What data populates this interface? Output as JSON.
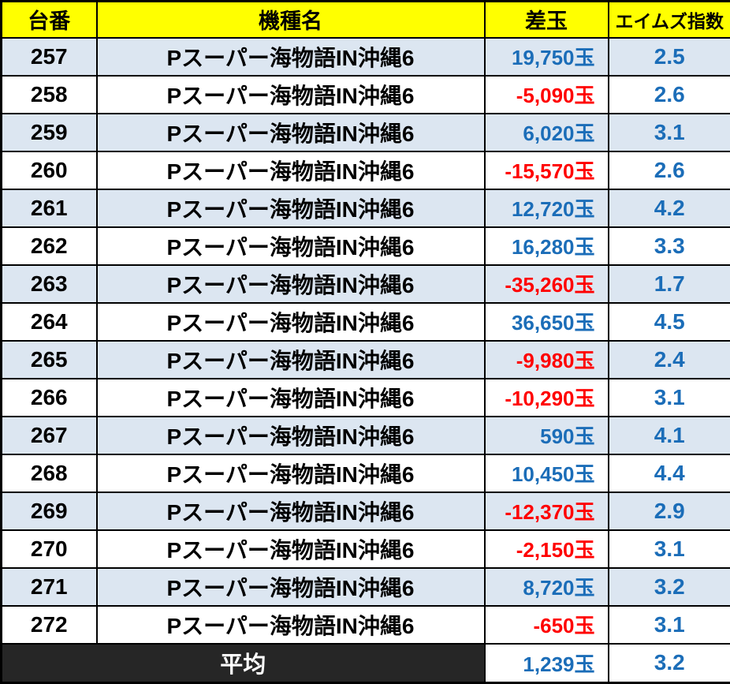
{
  "colors": {
    "header_background": "#FFFF00",
    "stripe_blue": "#DCE6F1",
    "positive_blue": "#1B6DB8",
    "negative_red": "#FF0000",
    "footer_dark": "#262626",
    "border_black": "#000000"
  },
  "table": {
    "headers": [
      "台番",
      "機種名",
      "差玉",
      "エイムズ指数"
    ],
    "rows": [
      {
        "no": "257",
        "model": "Pスーパー海物語IN沖縄6",
        "diff": "19,750玉",
        "index": "2.5"
      },
      {
        "no": "258",
        "model": "Pスーパー海物語IN沖縄6",
        "diff": "-5,090玉",
        "index": "2.6"
      },
      {
        "no": "259",
        "model": "Pスーパー海物語IN沖縄6",
        "diff": "6,020玉",
        "index": "3.1"
      },
      {
        "no": "260",
        "model": "Pスーパー海物語IN沖縄6",
        "diff": "-15,570玉",
        "index": "2.6"
      },
      {
        "no": "261",
        "model": "Pスーパー海物語IN沖縄6",
        "diff": "12,720玉",
        "index": "4.2"
      },
      {
        "no": "262",
        "model": "Pスーパー海物語IN沖縄6",
        "diff": "16,280玉",
        "index": "3.3"
      },
      {
        "no": "263",
        "model": "Pスーパー海物語IN沖縄6",
        "diff": "-35,260玉",
        "index": "1.7"
      },
      {
        "no": "264",
        "model": "Pスーパー海物語IN沖縄6",
        "diff": "36,650玉",
        "index": "4.5"
      },
      {
        "no": "265",
        "model": "Pスーパー海物語IN沖縄6",
        "diff": "-9,980玉",
        "index": "2.4"
      },
      {
        "no": "266",
        "model": "Pスーパー海物語IN沖縄6",
        "diff": "-10,290玉",
        "index": "3.1"
      },
      {
        "no": "267",
        "model": "Pスーパー海物語IN沖縄6",
        "diff": "590玉",
        "index": "4.1"
      },
      {
        "no": "268",
        "model": "Pスーパー海物語IN沖縄6",
        "diff": "10,450玉",
        "index": "4.4"
      },
      {
        "no": "269",
        "model": "Pスーパー海物語IN沖縄6",
        "diff": "-12,370玉",
        "index": "2.9"
      },
      {
        "no": "270",
        "model": "Pスーパー海物語IN沖縄6",
        "diff": "-2,150玉",
        "index": "3.1"
      },
      {
        "no": "271",
        "model": "Pスーパー海物語IN沖縄6",
        "diff": "8,720玉",
        "index": "3.2"
      },
      {
        "no": "272",
        "model": "Pスーパー海物語IN沖縄6",
        "diff": "-650玉",
        "index": "3.1"
      }
    ],
    "footer": {
      "label": "平均",
      "diff": "1,239玉",
      "index": "3.2"
    }
  },
  "chart_data": {
    "type": "table",
    "columns": [
      "台番",
      "機種名",
      "差玉",
      "エイムズ指数"
    ],
    "rows": [
      [
        257,
        "Pスーパー海物語IN沖縄6",
        19750,
        2.5
      ],
      [
        258,
        "Pスーパー海物語IN沖縄6",
        -5090,
        2.6
      ],
      [
        259,
        "Pスーパー海物語IN沖縄6",
        6020,
        3.1
      ],
      [
        260,
        "Pスーパー海物語IN沖縄6",
        -15570,
        2.6
      ],
      [
        261,
        "Pスーパー海物語IN沖縄6",
        12720,
        4.2
      ],
      [
        262,
        "Pスーパー海物語IN沖縄6",
        16280,
        3.3
      ],
      [
        263,
        "Pスーパー海物語IN沖縄6",
        -35260,
        1.7
      ],
      [
        264,
        "Pスーパー海物語IN沖縄6",
        36650,
        4.5
      ],
      [
        265,
        "Pスーパー海物語IN沖縄6",
        -9980,
        2.4
      ],
      [
        266,
        "Pスーパー海物語IN沖縄6",
        -10290,
        3.1
      ],
      [
        267,
        "Pスーパー海物語IN沖縄6",
        590,
        4.1
      ],
      [
        268,
        "Pスーパー海物語IN沖縄6",
        10450,
        4.4
      ],
      [
        269,
        "Pスーパー海物語IN沖縄6",
        -12370,
        2.9
      ],
      [
        270,
        "Pスーパー海物語IN沖縄6",
        -2150,
        3.1
      ],
      [
        271,
        "Pスーパー海物語IN沖縄6",
        8720,
        3.2
      ],
      [
        272,
        "Pスーパー海物語IN沖縄6",
        -650,
        3.1
      ]
    ],
    "footer_row": [
      "平均",
      1239,
      3.2
    ],
    "value_units": "玉",
    "notes": "positive diff values blue, negative red; rows striped pale blue/white"
  }
}
